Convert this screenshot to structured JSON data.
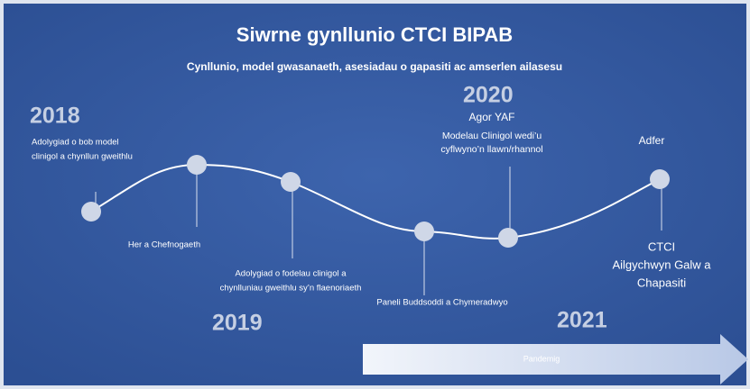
{
  "header": {
    "title": "Siwrne gynllunio CTCI BIPAB",
    "subtitle": "Cynllunio, model gwasanaeth, asesiadau o gapasiti ac amserlen ailasesu"
  },
  "years": [
    "2018",
    "2019",
    "2020",
    "2021"
  ],
  "events": [
    {
      "lines": [
        "Adolygiad o bob model",
        "clinigol a chynllun gweithlu"
      ]
    },
    {
      "lines": [
        "Her a Chefnogaeth"
      ]
    },
    {
      "lines": [
        "Adolygiad o fodelau clinigol a",
        "chynlluniau gweithlu sy’n flaenoriaeth"
      ]
    },
    {
      "lines": [
        "Paneli Buddsoddi a Chymeradwyo"
      ]
    },
    {
      "lines": [
        "Agor YAF",
        "Modelau Clinigol wedi’u",
        "cyflwyno’n llawn/rhannol"
      ]
    },
    {
      "lines": [
        "Adfer"
      ]
    },
    {
      "lines": [
        "CTCI",
        "Ailgychwyn Galw a",
        "Chapasiti"
      ]
    }
  ],
  "arrow": {
    "label": "Pandemig"
  }
}
